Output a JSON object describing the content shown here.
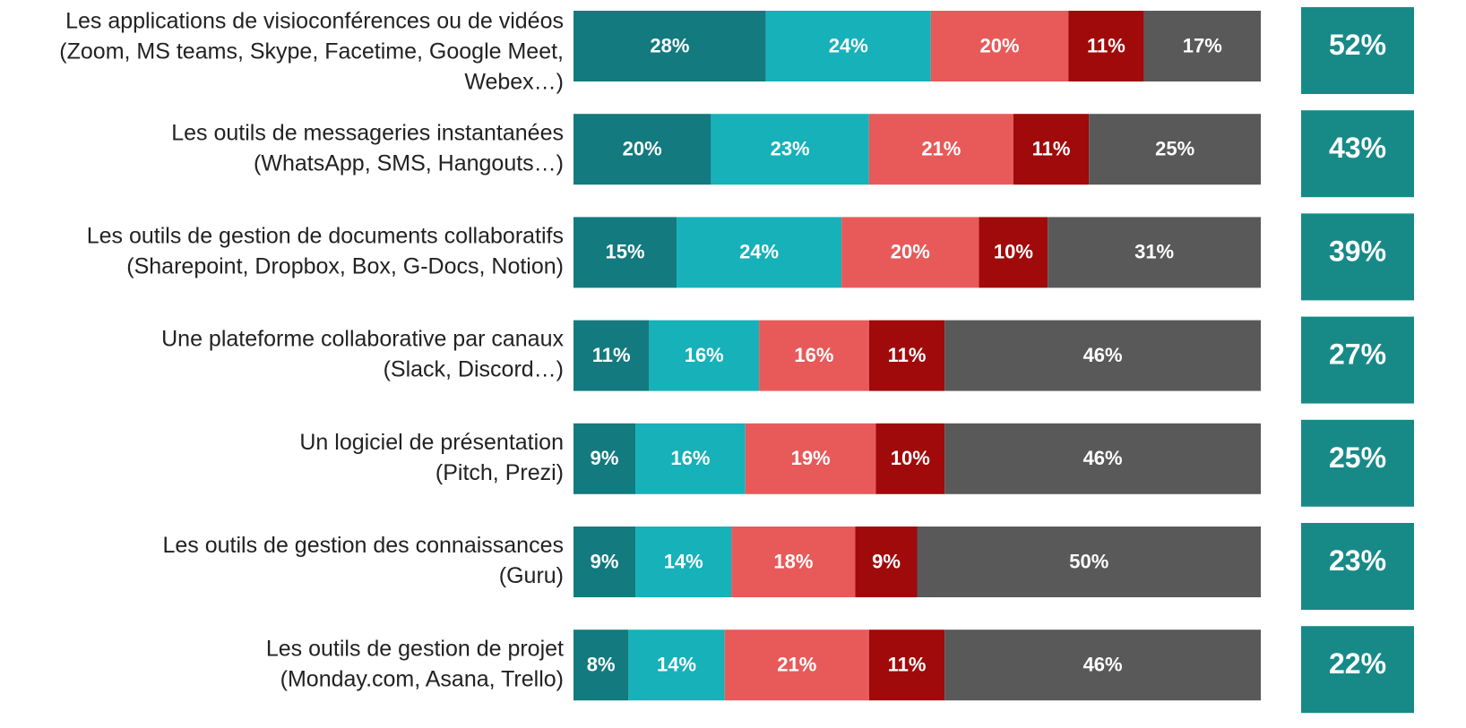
{
  "chart_data": {
    "type": "stacked_bar_horizontal",
    "categories": [
      [
        "Les applications de visioconférences ou de vidéos",
        "(Zoom, MS teams, Skype, Facetime, Google Meet,",
        "Webex…)"
      ],
      [
        "Les outils de messageries instantanées",
        "(WhatsApp, SMS, Hangouts…)"
      ],
      [
        "Les outils de gestion de documents collaboratifs",
        "(Sharepoint, Dropbox, Box, G-Docs, Notion)"
      ],
      [
        "Une plateforme collaborative par canaux",
        "(Slack, Discord…)"
      ],
      [
        "Un logiciel de présentation",
        "(Pitch, Prezi)"
      ],
      [
        "Les outils de gestion des connaissances",
        "(Guru)"
      ],
      [
        "Les outils de gestion de projet",
        "(Monday.com, Asana, Trello)"
      ]
    ],
    "xlim": [
      0,
      100
    ],
    "series": [
      {
        "color": "#137a7f",
        "values": [
          28,
          20,
          15,
          11,
          9,
          9,
          8
        ],
        "value_labels": [
          "28%",
          "20%",
          "15%",
          "11%",
          "9%",
          "9%",
          "8%"
        ]
      },
      {
        "color": "#16b1b9",
        "values": [
          24,
          23,
          24,
          16,
          16,
          14,
          14
        ],
        "value_labels": [
          "24%",
          "23%",
          "24%",
          "16%",
          "16%",
          "14%",
          "14%"
        ]
      },
      {
        "color": "#e85a5a",
        "values": [
          20,
          21,
          20,
          16,
          19,
          18,
          21
        ],
        "value_labels": [
          "20%",
          "21%",
          "20%",
          "16%",
          "19%",
          "18%",
          "21%"
        ]
      },
      {
        "color": "#a00a0a",
        "values": [
          11,
          11,
          10,
          11,
          10,
          9,
          11
        ],
        "value_labels": [
          "11%",
          "11%",
          "10%",
          "11%",
          "10%",
          "9%",
          "11%"
        ]
      },
      {
        "color": "#595959",
        "values": [
          17,
          25,
          31,
          46,
          46,
          50,
          46
        ],
        "value_labels": [
          "17%",
          "25%",
          "31%",
          "46%",
          "46%",
          "50%",
          "46%"
        ]
      }
    ],
    "totals": {
      "color": "#178a88",
      "values": [
        52,
        43,
        39,
        27,
        25,
        23,
        22
      ],
      "value_labels": [
        "52%",
        "43%",
        "39%",
        "27%",
        "25%",
        "23%",
        "22%"
      ]
    }
  }
}
